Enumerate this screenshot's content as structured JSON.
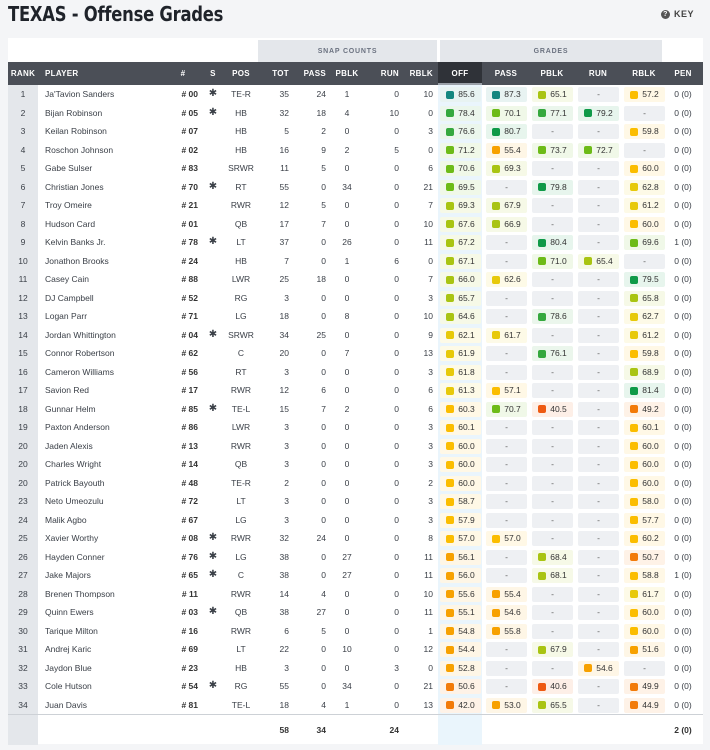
{
  "page": {
    "title": "TEXAS - Offense Grades",
    "key_label": "KEY"
  },
  "groups": {
    "snap_counts": "SNAP COUNTS",
    "grades": "GRADES"
  },
  "columns": [
    "RANK",
    "PLAYER",
    "#",
    "S",
    "POS",
    "TOT",
    "PASS",
    "PBLK",
    "RUN",
    "RBLK",
    "OFF",
    "PASS",
    "PBLK",
    "RUN",
    "RBLK",
    "PEN"
  ],
  "starter_symbol": "✱",
  "grade_colors": {
    "elite": "#14867f",
    "high": "#0f9a48",
    "good": "#35a83e",
    "above": "#6dbb18",
    "avg": "#a9c412",
    "below": "#e7c90a",
    "low": "#fbbd00",
    "poor": "#f7a100",
    "bad": "#f27b0a",
    "worst": "#ee5a12"
  },
  "rows": [
    {
      "rank": "1",
      "player": "Ja'Tavion Sanders",
      "num": "# 00",
      "s": true,
      "pos": "TE-R",
      "tot": "35",
      "pass": "24",
      "pblk": "1",
      "run": "0",
      "rblk": "10",
      "g": [
        "85.6",
        "87.3",
        "65.1",
        "-",
        "57.2"
      ],
      "pen": "0 (0)"
    },
    {
      "rank": "2",
      "player": "Bijan Robinson",
      "num": "# 05",
      "s": true,
      "pos": "HB",
      "tot": "32",
      "pass": "18",
      "pblk": "4",
      "run": "10",
      "rblk": "0",
      "g": [
        "78.4",
        "70.1",
        "77.1",
        "79.2",
        "-"
      ],
      "pen": "0 (0)"
    },
    {
      "rank": "3",
      "player": "Keilan Robinson",
      "num": "# 07",
      "s": false,
      "pos": "HB",
      "tot": "5",
      "pass": "2",
      "pblk": "0",
      "run": "0",
      "rblk": "3",
      "g": [
        "76.6",
        "80.7",
        "-",
        "-",
        "59.8"
      ],
      "pen": "0 (0)"
    },
    {
      "rank": "4",
      "player": "Roschon Johnson",
      "num": "# 02",
      "s": false,
      "pos": "HB",
      "tot": "16",
      "pass": "9",
      "pblk": "2",
      "run": "5",
      "rblk": "0",
      "g": [
        "71.2",
        "55.4",
        "73.7",
        "72.7",
        "-"
      ],
      "pen": "0 (0)"
    },
    {
      "rank": "5",
      "player": "Gabe Sulser",
      "num": "# 83",
      "s": false,
      "pos": "SRWR",
      "tot": "11",
      "pass": "5",
      "pblk": "0",
      "run": "0",
      "rblk": "6",
      "g": [
        "70.6",
        "69.3",
        "-",
        "-",
        "60.0"
      ],
      "pen": "0 (0)"
    },
    {
      "rank": "6",
      "player": "Christian Jones",
      "num": "# 70",
      "s": true,
      "pos": "RT",
      "tot": "55",
      "pass": "0",
      "pblk": "34",
      "run": "0",
      "rblk": "21",
      "g": [
        "69.5",
        "-",
        "79.8",
        "-",
        "62.8"
      ],
      "pen": "0 (0)"
    },
    {
      "rank": "7",
      "player": "Troy Omeire",
      "num": "# 21",
      "s": false,
      "pos": "RWR",
      "tot": "12",
      "pass": "5",
      "pblk": "0",
      "run": "0",
      "rblk": "7",
      "g": [
        "69.3",
        "67.9",
        "-",
        "-",
        "61.2"
      ],
      "pen": "0 (0)"
    },
    {
      "rank": "8",
      "player": "Hudson Card",
      "num": "# 01",
      "s": false,
      "pos": "QB",
      "tot": "17",
      "pass": "7",
      "pblk": "0",
      "run": "0",
      "rblk": "10",
      "g": [
        "67.6",
        "66.9",
        "-",
        "-",
        "60.0"
      ],
      "pen": "0 (0)"
    },
    {
      "rank": "9",
      "player": "Kelvin Banks Jr.",
      "num": "# 78",
      "s": true,
      "pos": "LT",
      "tot": "37",
      "pass": "0",
      "pblk": "26",
      "run": "0",
      "rblk": "11",
      "g": [
        "67.2",
        "-",
        "80.4",
        "-",
        "69.6"
      ],
      "pen": "1 (0)"
    },
    {
      "rank": "10",
      "player": "Jonathon Brooks",
      "num": "# 24",
      "s": false,
      "pos": "HB",
      "tot": "7",
      "pass": "0",
      "pblk": "1",
      "run": "6",
      "rblk": "0",
      "g": [
        "67.1",
        "-",
        "71.0",
        "65.4",
        "-"
      ],
      "pen": "0 (0)"
    },
    {
      "rank": "11",
      "player": "Casey Cain",
      "num": "# 88",
      "s": false,
      "pos": "LWR",
      "tot": "25",
      "pass": "18",
      "pblk": "0",
      "run": "0",
      "rblk": "7",
      "g": [
        "66.0",
        "62.6",
        "-",
        "-",
        "79.5"
      ],
      "pen": "0 (0)"
    },
    {
      "rank": "12",
      "player": "DJ Campbell",
      "num": "# 52",
      "s": false,
      "pos": "RG",
      "tot": "3",
      "pass": "0",
      "pblk": "0",
      "run": "0",
      "rblk": "3",
      "g": [
        "65.7",
        "-",
        "-",
        "-",
        "65.8"
      ],
      "pen": "0 (0)"
    },
    {
      "rank": "13",
      "player": "Logan Parr",
      "num": "# 71",
      "s": false,
      "pos": "LG",
      "tot": "18",
      "pass": "0",
      "pblk": "8",
      "run": "0",
      "rblk": "10",
      "g": [
        "64.6",
        "-",
        "78.6",
        "-",
        "62.7"
      ],
      "pen": "0 (0)"
    },
    {
      "rank": "14",
      "player": "Jordan Whittington",
      "num": "# 04",
      "s": true,
      "pos": "SRWR",
      "tot": "34",
      "pass": "25",
      "pblk": "0",
      "run": "0",
      "rblk": "9",
      "g": [
        "62.1",
        "61.7",
        "-",
        "-",
        "61.2"
      ],
      "pen": "0 (0)"
    },
    {
      "rank": "15",
      "player": "Connor Robertson",
      "num": "# 62",
      "s": false,
      "pos": "C",
      "tot": "20",
      "pass": "0",
      "pblk": "7",
      "run": "0",
      "rblk": "13",
      "g": [
        "61.9",
        "-",
        "76.1",
        "-",
        "59.8"
      ],
      "pen": "0 (0)"
    },
    {
      "rank": "16",
      "player": "Cameron Williams",
      "num": "# 56",
      "s": false,
      "pos": "RT",
      "tot": "3",
      "pass": "0",
      "pblk": "0",
      "run": "0",
      "rblk": "3",
      "g": [
        "61.8",
        "-",
        "-",
        "-",
        "68.9"
      ],
      "pen": "0 (0)"
    },
    {
      "rank": "17",
      "player": "Savion Red",
      "num": "# 17",
      "s": false,
      "pos": "RWR",
      "tot": "12",
      "pass": "6",
      "pblk": "0",
      "run": "0",
      "rblk": "6",
      "g": [
        "61.3",
        "57.1",
        "-",
        "-",
        "81.4"
      ],
      "pen": "0 (0)"
    },
    {
      "rank": "18",
      "player": "Gunnar Helm",
      "num": "# 85",
      "s": true,
      "pos": "TE-L",
      "tot": "15",
      "pass": "7",
      "pblk": "2",
      "run": "0",
      "rblk": "6",
      "g": [
        "60.3",
        "70.7",
        "40.5",
        "-",
        "49.2"
      ],
      "pen": "0 (0)"
    },
    {
      "rank": "19",
      "player": "Paxton Anderson",
      "num": "# 86",
      "s": false,
      "pos": "LWR",
      "tot": "3",
      "pass": "0",
      "pblk": "0",
      "run": "0",
      "rblk": "3",
      "g": [
        "60.1",
        "-",
        "-",
        "-",
        "60.1"
      ],
      "pen": "0 (0)"
    },
    {
      "rank": "20",
      "player": "Jaden Alexis",
      "num": "# 13",
      "s": false,
      "pos": "RWR",
      "tot": "3",
      "pass": "0",
      "pblk": "0",
      "run": "0",
      "rblk": "3",
      "g": [
        "60.0",
        "-",
        "-",
        "-",
        "60.0"
      ],
      "pen": "0 (0)"
    },
    {
      "rank": "20",
      "player": "Charles Wright",
      "num": "# 14",
      "s": false,
      "pos": "QB",
      "tot": "3",
      "pass": "0",
      "pblk": "0",
      "run": "0",
      "rblk": "3",
      "g": [
        "60.0",
        "-",
        "-",
        "-",
        "60.0"
      ],
      "pen": "0 (0)"
    },
    {
      "rank": "20",
      "player": "Patrick Bayouth",
      "num": "# 48",
      "s": false,
      "pos": "TE-R",
      "tot": "2",
      "pass": "0",
      "pblk": "0",
      "run": "0",
      "rblk": "2",
      "g": [
        "60.0",
        "-",
        "-",
        "-",
        "60.0"
      ],
      "pen": "0 (0)"
    },
    {
      "rank": "23",
      "player": "Neto Umeozulu",
      "num": "# 72",
      "s": false,
      "pos": "LT",
      "tot": "3",
      "pass": "0",
      "pblk": "0",
      "run": "0",
      "rblk": "3",
      "g": [
        "58.7",
        "-",
        "-",
        "-",
        "58.0"
      ],
      "pen": "0 (0)"
    },
    {
      "rank": "24",
      "player": "Malik Agbo",
      "num": "# 67",
      "s": false,
      "pos": "LG",
      "tot": "3",
      "pass": "0",
      "pblk": "0",
      "run": "0",
      "rblk": "3",
      "g": [
        "57.9",
        "-",
        "-",
        "-",
        "57.7"
      ],
      "pen": "0 (0)"
    },
    {
      "rank": "25",
      "player": "Xavier Worthy",
      "num": "# 08",
      "s": true,
      "pos": "RWR",
      "tot": "32",
      "pass": "24",
      "pblk": "0",
      "run": "0",
      "rblk": "8",
      "g": [
        "57.0",
        "57.0",
        "-",
        "-",
        "60.2"
      ],
      "pen": "0 (0)"
    },
    {
      "rank": "26",
      "player": "Hayden Conner",
      "num": "# 76",
      "s": true,
      "pos": "LG",
      "tot": "38",
      "pass": "0",
      "pblk": "27",
      "run": "0",
      "rblk": "11",
      "g": [
        "56.1",
        "-",
        "68.4",
        "-",
        "50.7"
      ],
      "pen": "0 (0)"
    },
    {
      "rank": "27",
      "player": "Jake Majors",
      "num": "# 65",
      "s": true,
      "pos": "C",
      "tot": "38",
      "pass": "0",
      "pblk": "27",
      "run": "0",
      "rblk": "11",
      "g": [
        "56.0",
        "-",
        "68.1",
        "-",
        "58.8"
      ],
      "pen": "1 (0)"
    },
    {
      "rank": "28",
      "player": "Brenen Thompson",
      "num": "# 11",
      "s": false,
      "pos": "RWR",
      "tot": "14",
      "pass": "4",
      "pblk": "0",
      "run": "0",
      "rblk": "10",
      "g": [
        "55.6",
        "55.4",
        "-",
        "-",
        "61.7"
      ],
      "pen": "0 (0)"
    },
    {
      "rank": "29",
      "player": "Quinn Ewers",
      "num": "# 03",
      "s": true,
      "pos": "QB",
      "tot": "38",
      "pass": "27",
      "pblk": "0",
      "run": "0",
      "rblk": "11",
      "g": [
        "55.1",
        "54.6",
        "-",
        "-",
        "60.0"
      ],
      "pen": "0 (0)"
    },
    {
      "rank": "30",
      "player": "Tarique Milton",
      "num": "# 16",
      "s": false,
      "pos": "RWR",
      "tot": "6",
      "pass": "5",
      "pblk": "0",
      "run": "0",
      "rblk": "1",
      "g": [
        "54.8",
        "55.8",
        "-",
        "-",
        "60.0"
      ],
      "pen": "0 (0)"
    },
    {
      "rank": "31",
      "player": "Andrej Karic",
      "num": "# 69",
      "s": false,
      "pos": "LT",
      "tot": "22",
      "pass": "0",
      "pblk": "10",
      "run": "0",
      "rblk": "12",
      "g": [
        "54.4",
        "-",
        "67.9",
        "-",
        "51.6"
      ],
      "pen": "0 (0)"
    },
    {
      "rank": "32",
      "player": "Jaydon Blue",
      "num": "# 23",
      "s": false,
      "pos": "HB",
      "tot": "3",
      "pass": "0",
      "pblk": "0",
      "run": "3",
      "rblk": "0",
      "g": [
        "52.8",
        "-",
        "-",
        "54.6",
        "-"
      ],
      "pen": "0 (0)"
    },
    {
      "rank": "33",
      "player": "Cole Hutson",
      "num": "# 54",
      "s": true,
      "pos": "RG",
      "tot": "55",
      "pass": "0",
      "pblk": "34",
      "run": "0",
      "rblk": "21",
      "g": [
        "50.6",
        "-",
        "40.6",
        "-",
        "49.9"
      ],
      "pen": "0 (0)"
    },
    {
      "rank": "34",
      "player": "Juan Davis",
      "num": "# 81",
      "s": false,
      "pos": "TE-L",
      "tot": "18",
      "pass": "4",
      "pblk": "1",
      "run": "0",
      "rblk": "13",
      "g": [
        "42.0",
        "53.0",
        "65.5",
        "-",
        "44.9"
      ],
      "pen": "0 (0)"
    }
  ],
  "footer": {
    "tot": "58",
    "pass": "34",
    "run": "24",
    "pen": "2 (0)"
  }
}
